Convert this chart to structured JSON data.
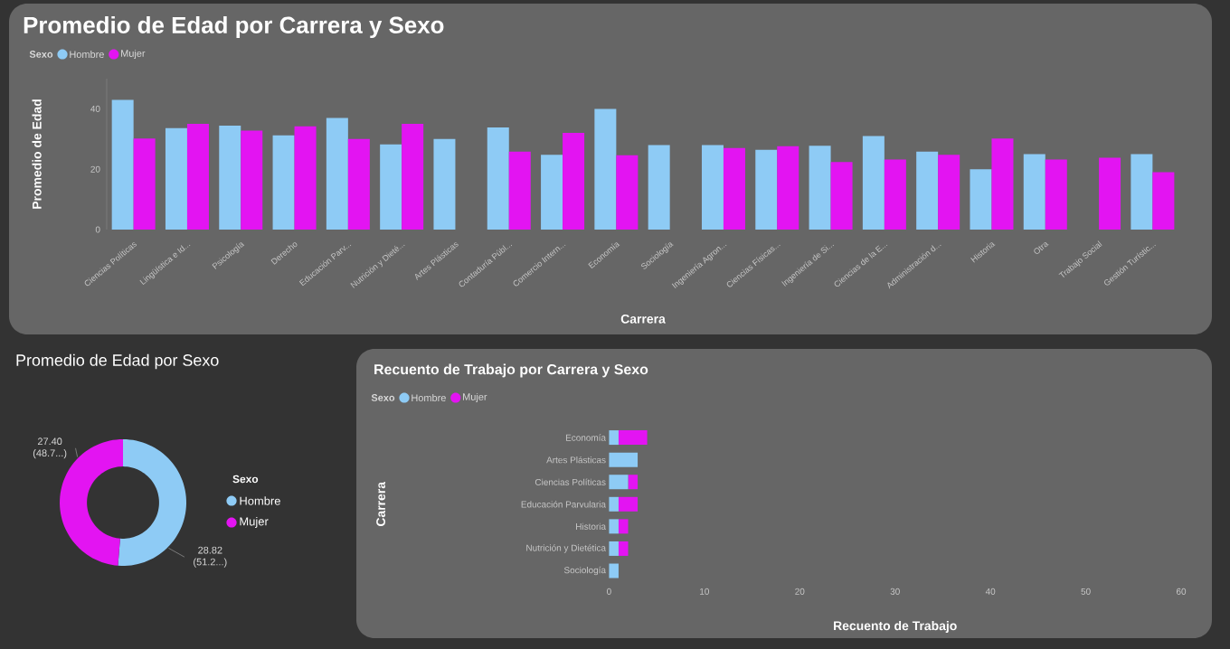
{
  "chart_data": [
    {
      "type": "bar",
      "title": "Promedio de Edad por Carrera y Sexo",
      "xlabel": "Carrera",
      "ylabel": "Promedio de Edad",
      "legend_title": "Sexo",
      "legend": "top left",
      "categories": [
        "Ciencias Políticas",
        "Lingüística e Id...",
        "Psicología",
        "Derecho",
        "Educación Parv...",
        "Nutrición y Dieté...",
        "Artes Plásticas",
        "Contaduría Públ...",
        "Comercio Intern...",
        "Economía",
        "Sociología",
        "Ingeniería Agron...",
        "Ciencias Físicas...",
        "Ingeniería de Si...",
        "Ciencias de la E...",
        "Administración d...",
        "Historia",
        "Otra",
        "Trabajo Social",
        "Gestión Turístic..."
      ],
      "series": [
        {
          "name": "Hombre",
          "color": "#8ecbf5",
          "values": [
            43,
            33.6,
            34.4,
            31.2,
            37,
            28.2,
            30,
            33.8,
            24.8,
            40,
            28,
            28,
            26.4,
            27.8,
            31,
            25.8,
            20,
            25,
            null,
            25
          ]
        },
        {
          "name": "Mujer",
          "color": "#e314f2",
          "values": [
            30.2,
            35,
            32.8,
            34.2,
            30,
            35,
            null,
            25.8,
            32,
            24.6,
            null,
            27,
            27.6,
            22.4,
            23.2,
            24.8,
            30.2,
            23.2,
            23.8,
            19
          ]
        }
      ],
      "ylim": [
        0,
        50
      ],
      "yticks": [
        0,
        20,
        40
      ]
    },
    {
      "type": "donut",
      "title": "Promedio de Edad por Sexo",
      "legend_title": "Sexo",
      "legend": "right",
      "categories": [
        "Hombre",
        "Mujer"
      ],
      "values": [
        28.82,
        27.4
      ],
      "colors": [
        "#8ecbf5",
        "#e314f2"
      ],
      "value_labels": [
        "28.82 (51.2...)",
        "27.40 (48.7...)"
      ]
    },
    {
      "type": "bar",
      "orientation": "horizontal",
      "stacked": true,
      "title": "Recuento de Trabajo por Carrera y Sexo",
      "xlabel": "Recuento de Trabajo",
      "ylabel": "Carrera",
      "legend_title": "Sexo",
      "legend": "top left",
      "categories": [
        "Economía",
        "Artes Plásticas",
        "Ciencias Políticas",
        "Educación Parvularia",
        "Historia",
        "Nutrición y Dietética",
        "Sociología"
      ],
      "series": [
        {
          "name": "Hombre",
          "color": "#8ecbf5",
          "values": [
            1,
            3,
            2,
            1,
            1,
            1,
            1
          ]
        },
        {
          "name": "Mujer",
          "color": "#e314f2",
          "values": [
            3,
            null,
            1,
            2,
            1,
            1,
            null
          ]
        }
      ],
      "xlim": [
        0,
        60
      ],
      "xticks": [
        0,
        10,
        20,
        30,
        40,
        50,
        60
      ]
    }
  ]
}
